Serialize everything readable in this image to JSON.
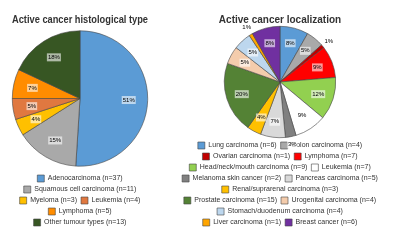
{
  "chart_data": [
    {
      "type": "pie",
      "title": "Active cancer histological type",
      "categories": [
        "Adenocarcinoma (n=37)",
        "Squamous cell carcinoma (n=11)",
        "Myeloma (n=3)",
        "Leukemia (n=4)",
        "Lymphoma (n=5)",
        "Other tumour types (n=13)"
      ],
      "values": [
        51,
        15,
        4,
        5,
        7,
        18
      ],
      "value_labels": [
        "51%",
        "15%",
        "4%",
        "5%",
        "7%",
        "18%"
      ],
      "colors": [
        "#5B9BD5",
        "#A9A9A9",
        "#FFC000",
        "#E07840",
        "#FF8C00",
        "#375623"
      ],
      "data_labels": true,
      "legend": "bottom"
    },
    {
      "type": "pie",
      "title": "Active cancer localization",
      "categories": [
        "Lung carcinoma (n=6)",
        "Colon carcinoma (n=4)",
        "Ovarian carcinoma (n=1)",
        "Lymphoma (n=7)",
        "Head/neck/mouth carcinoma (n=9)",
        "Leukemia (n=7)",
        "Melanoma skin cancer (n=2)",
        "Pancreas carcinoma (n=5)",
        "Renal/suprarenal carcinoma (n=3)",
        "Prostate carcinoma (n=15)",
        "Urogenital carcinoma (n=4)",
        "Stomach/duodenum carcinoma (n=4)",
        "Liver carcinoma (n=1)",
        "Breast cancer (n=6)"
      ],
      "values": [
        8,
        5,
        1,
        9,
        12,
        9,
        3,
        7,
        4,
        20,
        5,
        5,
        1,
        8
      ],
      "value_labels": [
        "8%",
        "5%",
        "1%",
        "9%",
        "12%",
        "9%",
        "3%",
        "7%",
        "4%",
        "20%",
        "5%",
        "5%",
        "1%",
        "8%"
      ],
      "colors": [
        "#5B9BD5",
        "#A9A9A9",
        "#C00000",
        "#FF0000",
        "#92D050",
        "#FFFFFF",
        "#808080",
        "#D9D9D9",
        "#FFC000",
        "#548235",
        "#F4CCAC",
        "#BDD7EE",
        "#FFA500",
        "#7030A0"
      ],
      "data_labels": true,
      "legend": "bottom"
    }
  ]
}
